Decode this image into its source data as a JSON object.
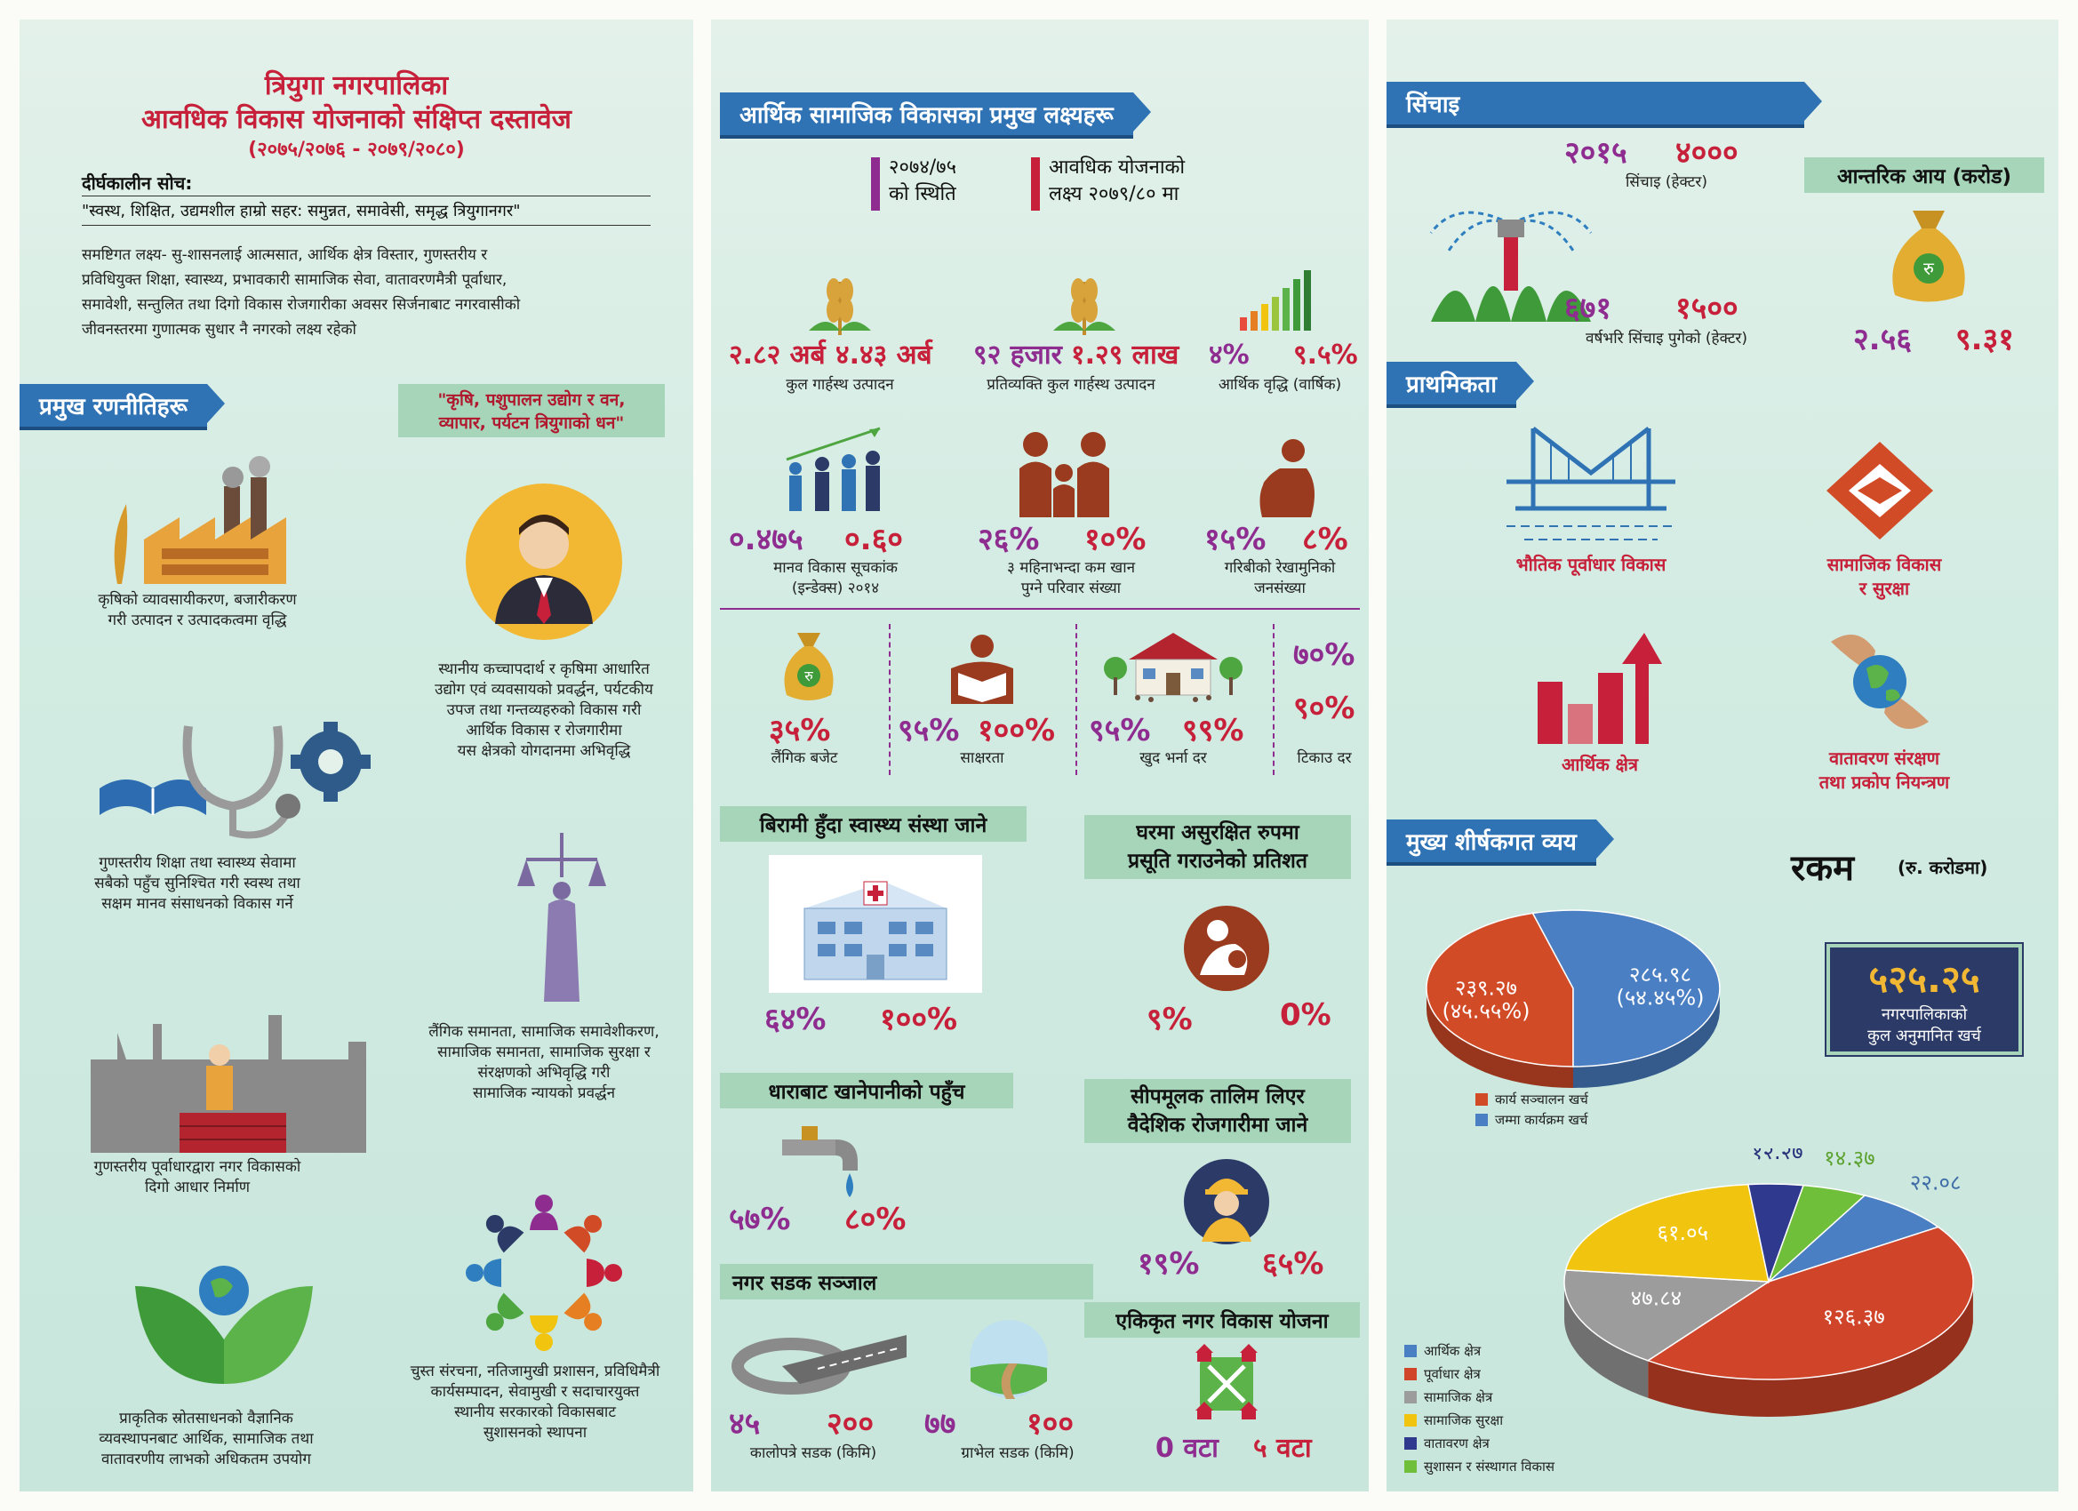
{
  "panel1": {
    "title_line1": "त्रियुगा नगरपालिका",
    "title_line2": "आवधिक विकास योजनाको संक्षिप्त दस्तावेज",
    "title_line3": "(२०७५/२०७६ - २०७९/२०८०)",
    "vision_label": "दीर्घकालीन सोच:",
    "vision_text": "\"स्वस्थ, शिक्षित, उद्यमशील हाम्रो सहर: समुन्नत, समावेसी, समृद्ध त्रियुगानगर\"",
    "goal_line1": "समष्टिगत लक्ष्य- सु-शासनलाई आत्मसात, आर्थिक क्षेत्र विस्तार, गुणस्तरीय र",
    "goal_line2": "प्रविधियुक्त शिक्षा, स्वास्थ्य, प्रभावकारी सामाजिक सेवा, वातावरणमैत्री पूर्वाधार,",
    "goal_line3": "समावेशी, सन्तुलित तथा दिगो विकास रोजगारीका अवसर सिर्जनाबाट नगरवासीको",
    "goal_line4": "जीवनस्तरमा गुणात्मक सुधार नै नगरको लक्ष्य रहेको",
    "strategies_ribbon": "प्रमुख रणनीतिहरू",
    "slogan_line1": "\"कृषि, पशुपालन उद्योग र वन,",
    "slogan_line2": "व्यापार, पर्यटन त्रियुगाको धन\"",
    "s1_line1": "कृषिको व्यावसायीकरण, बजारीकरण",
    "s1_line2": "गरी उत्पादन र उत्पादकत्वमा वृद्धि",
    "s2_line1": "स्थानीय कच्चापदार्थ र कृषिमा आधारित",
    "s2_line2": "उद्योग एवं व्यवसायको प्रवर्द्धन, पर्यटकीय",
    "s2_line3": "उपज तथा गन्तव्यहरुको विकास गरी",
    "s2_line4": "आर्थिक विकास र रोजगारीमा",
    "s2_line5": "यस क्षेत्रको योगदानमा अभिवृद्धि",
    "s3_line1": "गुणस्तरीय शिक्षा तथा स्वास्थ्य सेवामा",
    "s3_line2": "सबैको पहुँच सुनिश्चित गरी स्वस्थ तथा",
    "s3_line3": "सक्षम मानव संसाधनको विकास गर्ने",
    "s4_line1": "लैंगिक समानता, सामाजिक समावेशीकरण,",
    "s4_line2": "सामाजिक समानता, सामाजिक सुरक्षा र",
    "s4_line3": "संरक्षणको अभिवृद्धि गरी",
    "s4_line4": "सामाजिक न्यायको प्रवर्द्धन",
    "s5_line1": "गुणस्तरीय पूर्वाधारद्वारा नगर विकासको",
    "s5_line2": "दिगो आधार निर्माण",
    "s6_line1": "प्राकृतिक स्रोतसाधनको वैज्ञानिक",
    "s6_line2": "व्यवस्थापनबाट आर्थिक, सामाजिक तथा",
    "s6_line3": "वातावरणीय लाभको अधिकतम उपयोग",
    "s7_line1": "चुस्त संरचना, नतिजामुखी प्रशासन, प्रविधिमैत्री",
    "s7_line2": "कार्यसम्पादन, सेवामुखी र सदाचारयुक्त",
    "s7_line3": "स्थानीय सरकारको विकासबाट",
    "s7_line4": "सुशासनको स्थापना"
  },
  "panel2": {
    "ribbon": "आर्थिक सामाजिक विकासका प्रमुख लक्ष्यहरू",
    "legend_a_line1": "२०७४/७५",
    "legend_a_line2": "को स्थिति",
    "legend_b_line1": "आवधिक योजनाको",
    "legend_b_line2": "लक्ष्य २०७९/८० मा",
    "gdp_a": "२.८२ अर्ब",
    "gdp_b": "४.४३ अर्ब",
    "gdp_label": "कुल गार्हस्थ उत्पादन",
    "pcgdp_a": "९२ हजार",
    "pcgdp_b": "१.२९ लाख",
    "pcgdp_label": "प्रतिव्यक्ति कुल गार्हस्थ उत्पादन",
    "growth_a": "४%",
    "growth_b": "९.५%",
    "growth_label": "आर्थिक वृद्धि (वार्षिक)",
    "hdi_a": "०.४७५",
    "hdi_b": "०.६०",
    "hdi_label_line1": "मानव विकास सूचकांक",
    "hdi_label_line2": "(इन्डेक्स) २०१४",
    "food_a": "२६%",
    "food_b": "१०%",
    "food_label_line1": "३ महिनाभन्दा कम खान",
    "food_label_line2": "पुग्ने परिवार संख्या",
    "pov_a": "१५%",
    "pov_b": "८%",
    "pov_label_line1": "गरिबीको रेखामुनिको",
    "pov_label_line2": "जनसंख्या",
    "gender_val": "३५%",
    "gender_label": "लैंगिक बजेट",
    "lit_a": "९५%",
    "lit_b": "१००%",
    "lit_label": "साक्षरता",
    "enr_a": "९५%",
    "enr_b": "९९%",
    "enr_label": "खुद भर्ना दर",
    "ret_a": "७०%",
    "ret_b": "९०%",
    "ret_label": "टिकाउ दर",
    "health_hdr": "बिरामी हुँदा स्वास्थ्य संस्था जाने",
    "health_a": "६४%",
    "health_b": "१००%",
    "birth_hdr_line1": "घरमा असुरक्षित रुपमा",
    "birth_hdr_line2": "प्रसूति गराउनेको प्रतिशत",
    "birth_a": "९%",
    "birth_b": "0%",
    "water_hdr": "धाराबाट खानेपानीको पहुँच",
    "water_a": "५७%",
    "water_b": "८०%",
    "skill_hdr_line1": "सीपमूलक तालिम लिएर",
    "skill_hdr_line2": "वैदेशिक रोजगारीमा जाने",
    "skill_a": "१९%",
    "skill_b": "६५%",
    "road_hdr": "नगर सडक सञ्जाल",
    "black_a": "४५",
    "black_b": "२००",
    "black_label": "कालोपत्रे सडक (किमि)",
    "gravel_a": "७७",
    "gravel_b": "१००",
    "gravel_label": "ग्राभेल सडक (किमि)",
    "plan_hdr": "एकिकृत नगर विकास योजना",
    "plan_a": "0 वटा",
    "plan_b": "५ वटा"
  },
  "panel3": {
    "irrigation_hdr": "सिंचाइ",
    "irr_a": "२०१५",
    "irr_b": "४०००",
    "irr_label": "सिंचाइ (हेक्टर)",
    "year_a": "६७१",
    "year_b": "१५००",
    "year_label": "वर्षभरि सिंचाइ पुगेको (हेक्टर)",
    "revenue_hdr": "आन्तरिक आय (करोड)",
    "rev_a": "२.५६",
    "rev_b": "९.३१",
    "priority_hdr": "प्राथमिकता",
    "pri1": "भौतिक पूर्वाधार विकास",
    "pri2_line1": "सामाजिक विकास",
    "pri2_line2": "र सुरक्षा",
    "pri3": "आर्थिक क्षेत्र",
    "pri4_line1": "वातावरण संरक्षण",
    "pri4_line2": "तथा प्रकोप नियन्त्रण",
    "expense_hdr": "मुख्य शीर्षकगत व्यय",
    "amount_label": "रकम",
    "amount_unit": "(रु. करोडमा)",
    "total_value": "५२५.२५",
    "total_label_line1": "नगरपालिकाको",
    "total_label_line2": "कुल अनुमानित खर्च"
  },
  "chart_data": [
    {
      "type": "pie",
      "categories": [
        "कार्य सञ्चालन खर्च",
        "जम्मा कार्यक्रम खर्च"
      ],
      "values": [
        239.27,
        285.98
      ],
      "data_labels": [
        "२३९.२७ (४५.५५%)",
        "२८५.९८ (५४.४५%)"
      ],
      "colors": [
        "#d24b27",
        "#4a7fc4"
      ],
      "legend": "bottom"
    },
    {
      "type": "pie",
      "categories": [
        "आर्थिक क्षेत्र",
        "पूर्वाधार क्षेत्र",
        "सामाजिक क्षेत्र",
        "सामाजिक सुरक्षा",
        "वातावरण क्षेत्र",
        "सुशासन र संस्थागत विकास"
      ],
      "values": [
        22.08,
        126.37,
        47.84,
        61.05,
        12.27,
        14.37
      ],
      "data_labels": [
        "२२.०८",
        "१२६.३७",
        "४७.८४",
        "६१.०५",
        "१२.२७",
        "१४.३७"
      ],
      "colors": [
        "#4a7fc4",
        "#d0442a",
        "#9c9c9c",
        "#f1c40f",
        "#2f3a8f",
        "#6fbf3a"
      ],
      "legend": "left"
    }
  ],
  "colors": {
    "ribbon": "#2f73b5",
    "status": "#8e2c8f",
    "target": "#c7203a",
    "header_green": "#a7d5ba"
  }
}
